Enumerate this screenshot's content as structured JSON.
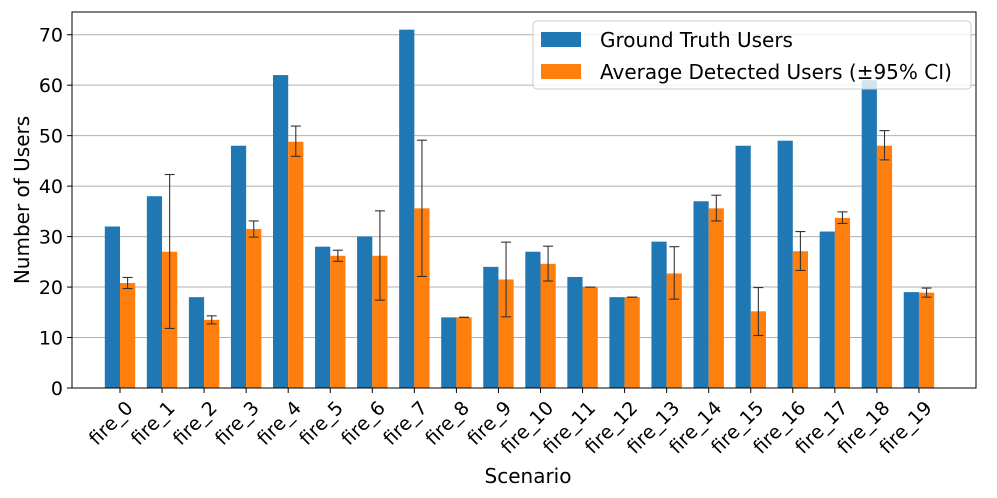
{
  "chart_data": {
    "type": "bar",
    "title": "",
    "xlabel": "Scenario",
    "ylabel": "Number of Users",
    "ylim": [
      0,
      74.5
    ],
    "yticks": [
      0,
      10,
      20,
      30,
      40,
      50,
      60,
      70
    ],
    "grid": "y",
    "legend_position": "top-right",
    "categories": [
      "fire_0",
      "fire_1",
      "fire_2",
      "fire_3",
      "fire_4",
      "fire_5",
      "fire_6",
      "fire_7",
      "fire_8",
      "fire_9",
      "fire_10",
      "fire_11",
      "fire_12",
      "fire_13",
      "fire_14",
      "fire_15",
      "fire_16",
      "fire_17",
      "fire_18",
      "fire_19"
    ],
    "series": [
      {
        "name": "Ground Truth Users",
        "color": "#1f77b4",
        "values": [
          32,
          38,
          18,
          48,
          62,
          28,
          30,
          71,
          14,
          24,
          27,
          22,
          18,
          29,
          37,
          48,
          49,
          31,
          61,
          19
        ]
      },
      {
        "name": "Average Detected Users (±95% CI)",
        "color": "#ff7f0e",
        "values": [
          20.8,
          27,
          13.5,
          31.5,
          48.8,
          26.2,
          26.2,
          35.6,
          14,
          21.5,
          24.6,
          20,
          18,
          22.7,
          35.6,
          15.2,
          27.1,
          33.7,
          48,
          18.9
        ],
        "ci_low": [
          19.7,
          11.8,
          12.7,
          29.9,
          45.9,
          25.1,
          17.4,
          22.1,
          14,
          14.1,
          21.2,
          20,
          18,
          17.6,
          33.1,
          10.4,
          23.3,
          32.6,
          45.2,
          18
        ],
        "ci_high": [
          21.9,
          42.3,
          14.3,
          33.1,
          51.9,
          27.3,
          35.1,
          49.1,
          14,
          28.9,
          28.1,
          20,
          18,
          28,
          38.2,
          19.9,
          31,
          34.9,
          51,
          19.8
        ]
      }
    ]
  }
}
